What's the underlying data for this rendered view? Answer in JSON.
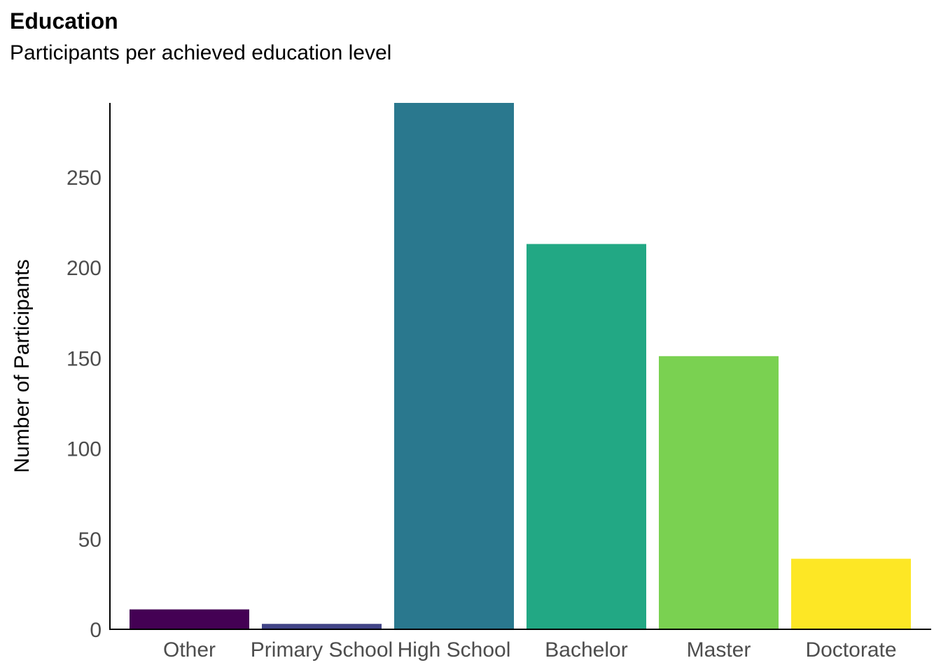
{
  "chart_data": {
    "type": "bar",
    "title": "Education",
    "subtitle": "Participants per achieved education level",
    "xlabel": "",
    "ylabel": "Number of Participants",
    "categories": [
      "Other",
      "Primary School",
      "High School",
      "Bachelor",
      "Master",
      "Doctorate"
    ],
    "values": [
      11,
      3,
      291,
      213,
      151,
      39
    ],
    "colors": [
      "#440154",
      "#414487",
      "#2A788E",
      "#22A884",
      "#7AD151",
      "#FDE725"
    ],
    "yticks": [
      0,
      50,
      100,
      150,
      200,
      250
    ],
    "ylim": [
      0,
      291
    ],
    "grid": false,
    "legend": "none"
  }
}
